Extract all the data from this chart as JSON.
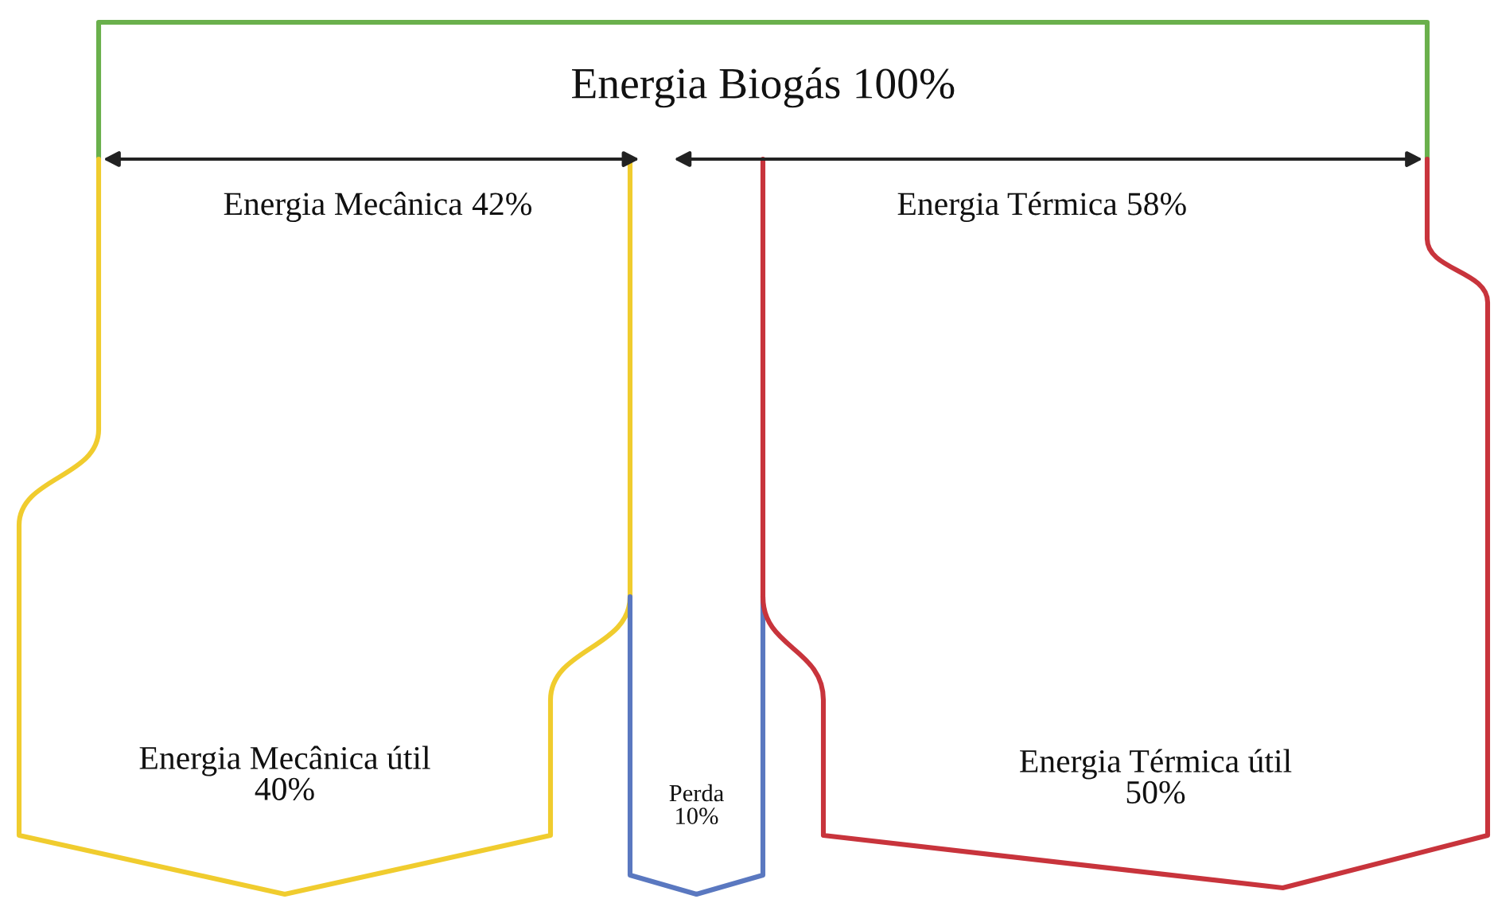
{
  "chart_data": {
    "type": "other",
    "categories": [
      "Energia Biogás",
      "Energia Mecânica",
      "Energia Térmica",
      "Energia Mecânica útil",
      "Perda",
      "Energia Térmica útil"
    ],
    "values": [
      100,
      42,
      58,
      40,
      10,
      50
    ],
    "value_labels": [
      "100%",
      "42%",
      "58%",
      "40%",
      "10%",
      "50%"
    ],
    "colors": [
      "#6ab04c",
      "#f0cc2e",
      "#c8343c",
      "#f0cc2e",
      "#5a78c0",
      "#c8343c"
    ]
  }
}
